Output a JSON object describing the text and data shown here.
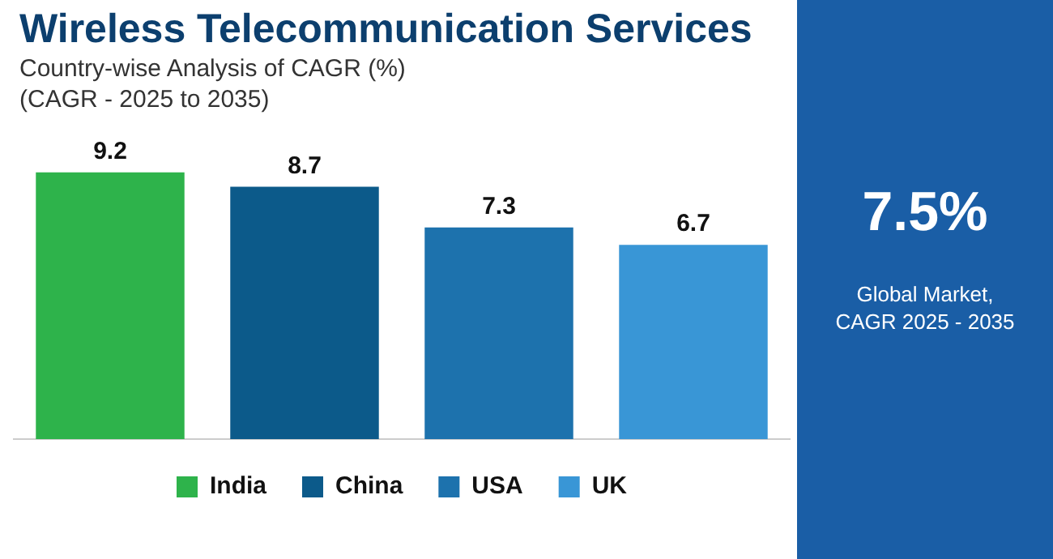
{
  "chart_data": {
    "type": "bar",
    "title": "Wireless Telecommunication Services",
    "subtitle": "Country-wise Analysis of CAGR (%)\n(CAGR - 2025 to 2035)",
    "categories": [
      null,
      null,
      null,
      null
    ],
    "series": [
      {
        "name": "India",
        "color": "#2eb34b",
        "values": [
          9.2,
          null,
          null,
          null
        ]
      },
      {
        "name": "China",
        "color": "#0c5a8a",
        "values": [
          null,
          8.7,
          null,
          null
        ]
      },
      {
        "name": "USA",
        "color": "#1d72ad",
        "values": [
          null,
          null,
          7.3,
          null
        ]
      },
      {
        "name": "UK",
        "color": "#3996d6",
        "values": [
          null,
          null,
          null,
          6.7
        ]
      }
    ],
    "stacked": true,
    "data_labels": true,
    "legend": "bottom",
    "grid": false,
    "tick_labels": false,
    "annotations": [
      "7.5%",
      "Global Market,",
      "CAGR 2025 - 2035"
    ]
  }
}
